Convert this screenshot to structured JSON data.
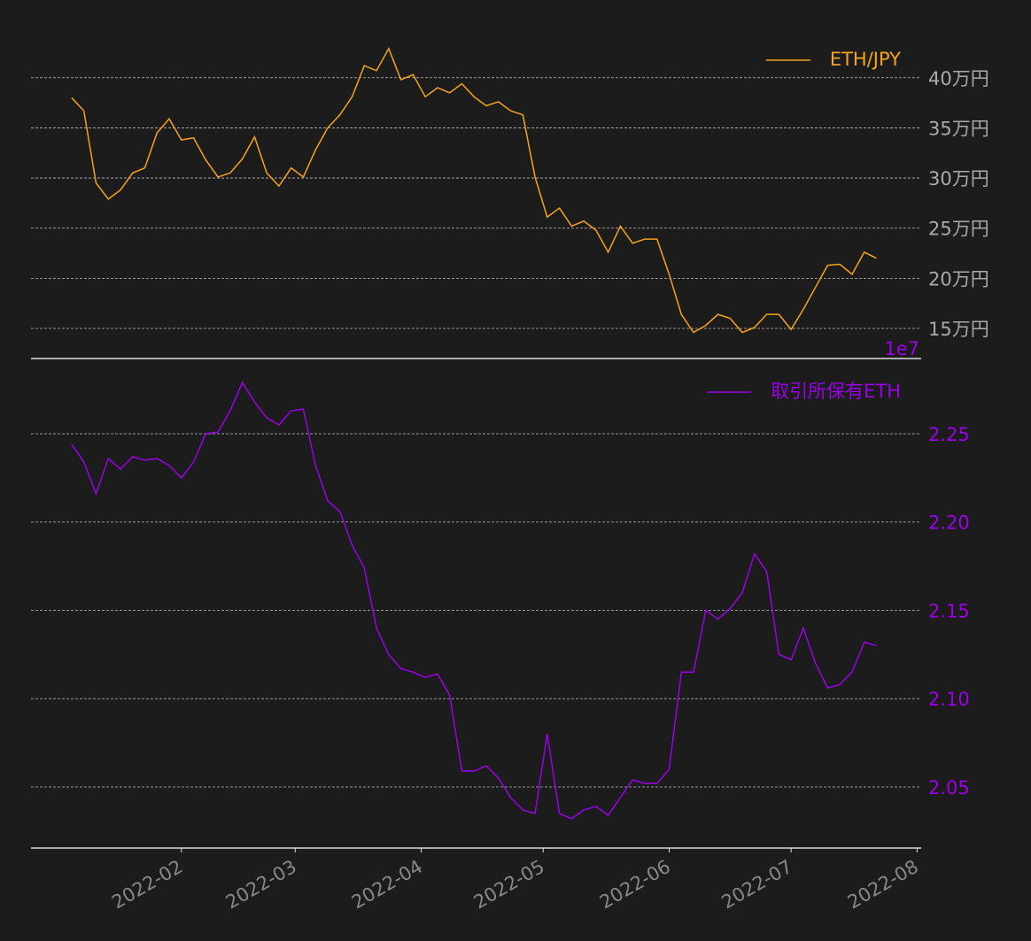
{
  "chart_data": [
    {
      "type": "line",
      "xlim": [
        "2021-12-26",
        "2022-08-02"
      ],
      "ylim": [
        120000,
        451000
      ],
      "yticks": [
        {
          "value": 150000,
          "label": "15万円"
        },
        {
          "value": 200000,
          "label": "20万円"
        },
        {
          "value": 250000,
          "label": "25万円"
        },
        {
          "value": 300000,
          "label": "30万円"
        },
        {
          "value": 350000,
          "label": "35万円"
        },
        {
          "value": 400000,
          "label": "40万円"
        }
      ],
      "grid": true,
      "legend": "upper right",
      "tick_color": "#aaaaaa",
      "x": [
        "2022-01-05",
        "2022-01-08",
        "2022-01-11",
        "2022-01-14",
        "2022-01-17",
        "2022-01-20",
        "2022-01-23",
        "2022-01-26",
        "2022-01-29",
        "2022-02-01",
        "2022-02-04",
        "2022-02-07",
        "2022-02-10",
        "2022-02-13",
        "2022-02-16",
        "2022-02-19",
        "2022-02-22",
        "2022-02-25",
        "2022-02-28",
        "2022-03-03",
        "2022-03-06",
        "2022-03-09",
        "2022-03-12",
        "2022-03-15",
        "2022-03-18",
        "2022-03-21",
        "2022-03-24",
        "2022-03-27",
        "2022-03-30",
        "2022-04-02",
        "2022-04-05",
        "2022-04-08",
        "2022-04-11",
        "2022-04-14",
        "2022-04-17",
        "2022-04-20",
        "2022-04-23",
        "2022-04-26",
        "2022-04-29",
        "2022-05-02",
        "2022-05-05",
        "2022-05-08",
        "2022-05-11",
        "2022-05-14",
        "2022-05-17",
        "2022-05-20",
        "2022-05-23",
        "2022-05-26",
        "2022-05-29",
        "2022-06-01",
        "2022-06-04",
        "2022-06-07",
        "2022-06-10",
        "2022-06-13",
        "2022-06-16",
        "2022-06-19",
        "2022-06-22",
        "2022-06-25",
        "2022-06-28",
        "2022-07-01",
        "2022-07-04",
        "2022-07-07",
        "2022-07-10",
        "2022-07-13",
        "2022-07-16",
        "2022-07-19",
        "2022-07-22"
      ],
      "series": [
        {
          "name": "ETH/JPY",
          "color": "#f5a31a",
          "values": [
            380000,
            367000,
            295000,
            279000,
            288000,
            305000,
            310000,
            345000,
            359000,
            338000,
            340000,
            318000,
            301000,
            305000,
            319000,
            341000,
            305000,
            292000,
            310000,
            301000,
            328000,
            350000,
            363000,
            381000,
            412000,
            407000,
            429000,
            398000,
            403000,
            381000,
            390000,
            385000,
            394000,
            381000,
            372000,
            376000,
            367000,
            363000,
            301000,
            261000,
            270000,
            252000,
            257000,
            248000,
            226000,
            252000,
            235000,
            239000,
            239000,
            204000,
            164000,
            146000,
            153000,
            164000,
            160000,
            146000,
            151000,
            164000,
            164000,
            149000,
            169000,
            191000,
            213000,
            214000,
            204000,
            226000,
            220000
          ]
        }
      ]
    },
    {
      "type": "line",
      "xlim": [
        "2021-12-26",
        "2022-08-02"
      ],
      "ylim": [
        2.0154,
        2.2926
      ],
      "offset_label": "1e7",
      "yticks": [
        2.05,
        {
          "value": 2.1,
          "label": "2.10"
        },
        2.15,
        {
          "value": 2.2,
          "label": "2.20"
        },
        2.25
      ],
      "xticks": [
        "2022-02",
        "2022-03",
        "2022-04",
        "2022-05",
        "2022-06",
        "2022-07",
        "2022-08"
      ],
      "grid": true,
      "legend": "upper right",
      "tick_color": "#9b00e8",
      "x": [
        "2022-01-05",
        "2022-01-08",
        "2022-01-11",
        "2022-01-14",
        "2022-01-17",
        "2022-01-20",
        "2022-01-23",
        "2022-01-26",
        "2022-01-29",
        "2022-02-01",
        "2022-02-04",
        "2022-02-07",
        "2022-02-10",
        "2022-02-13",
        "2022-02-16",
        "2022-02-19",
        "2022-02-22",
        "2022-02-25",
        "2022-02-28",
        "2022-03-03",
        "2022-03-06",
        "2022-03-09",
        "2022-03-12",
        "2022-03-15",
        "2022-03-18",
        "2022-03-21",
        "2022-03-24",
        "2022-03-27",
        "2022-03-30",
        "2022-04-02",
        "2022-04-05",
        "2022-04-08",
        "2022-04-11",
        "2022-04-14",
        "2022-04-17",
        "2022-04-20",
        "2022-04-23",
        "2022-04-26",
        "2022-04-29",
        "2022-05-02",
        "2022-05-05",
        "2022-05-08",
        "2022-05-11",
        "2022-05-14",
        "2022-05-17",
        "2022-05-20",
        "2022-05-23",
        "2022-05-26",
        "2022-05-29",
        "2022-06-01",
        "2022-06-04",
        "2022-06-07",
        "2022-06-10",
        "2022-06-13",
        "2022-06-16",
        "2022-06-19",
        "2022-06-22",
        "2022-06-25",
        "2022-06-28",
        "2022-07-01",
        "2022-07-04",
        "2022-07-07",
        "2022-07-10",
        "2022-07-13",
        "2022-07-16",
        "2022-07-19",
        "2022-07-22"
      ],
      "series": [
        {
          "name": "取引所保有ETH",
          "color": "#9b00e8",
          "values": [
            2.244,
            2.234,
            2.216,
            2.236,
            2.23,
            2.237,
            2.235,
            2.236,
            2.232,
            2.225,
            2.234,
            2.25,
            2.251,
            2.263,
            2.279,
            2.268,
            2.259,
            2.255,
            2.263,
            2.264,
            2.232,
            2.212,
            2.206,
            2.187,
            2.174,
            2.14,
            2.125,
            2.117,
            2.115,
            2.112,
            2.114,
            2.102,
            2.059,
            2.059,
            2.062,
            2.055,
            2.044,
            2.037,
            2.035,
            2.08,
            2.035,
            2.032,
            2.037,
            2.039,
            2.034,
            2.044,
            2.054,
            2.052,
            2.052,
            2.06,
            2.115,
            2.115,
            2.15,
            2.145,
            2.151,
            2.16,
            2.182,
            2.172,
            2.125,
            2.122,
            2.14,
            2.12,
            2.106,
            2.108,
            2.115,
            2.132,
            2.13
          ]
        }
      ]
    }
  ]
}
